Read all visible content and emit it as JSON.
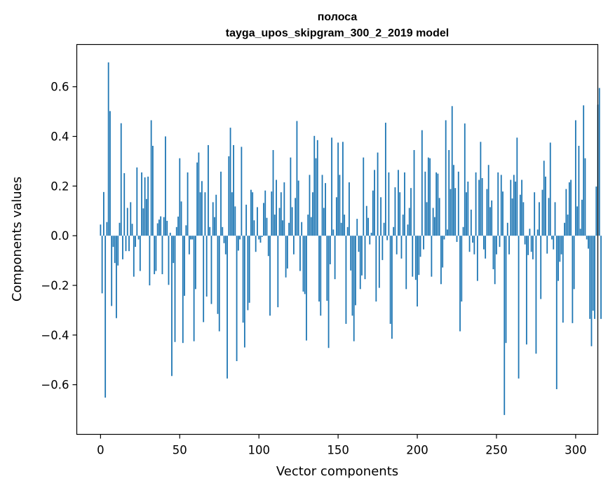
{
  "chart_data": {
    "type": "bar",
    "title": "полоса",
    "subtitle": "tayga_upos_skipgram_300_2_2019 model",
    "xlabel": "Vector components",
    "ylabel": "Components values",
    "xlim": [
      -15,
      314
    ],
    "ylim": [
      -0.8,
      0.77
    ],
    "xticks": [
      0,
      50,
      100,
      150,
      200,
      250,
      300
    ],
    "yticks": [
      -0.6,
      -0.4,
      -0.2,
      0.0,
      0.2,
      0.4,
      0.6
    ],
    "ytick_labels": [
      "−0.6",
      "−0.4",
      "−0.2",
      "0.0",
      "0.2",
      "0.4",
      "0.6"
    ],
    "bar_color": "#1f77b4",
    "series": [
      {
        "name": "values",
        "x_start": 0,
        "values": [
          0.045,
          -0.232,
          0.176,
          -0.652,
          0.055,
          0.698,
          0.502,
          -0.283,
          -0.045,
          -0.11,
          -0.332,
          -0.12,
          0.052,
          0.453,
          -0.095,
          0.252,
          -0.062,
          0.112,
          -0.062,
          0.135,
          0.048,
          -0.165,
          -0.045,
          0.275,
          -0.015,
          -0.142,
          0.255,
          0.11,
          0.235,
          0.148,
          0.238,
          -0.2,
          0.465,
          0.362,
          -0.155,
          -0.142,
          0.05,
          0.065,
          0.078,
          -0.155,
          0.075,
          0.4,
          0.06,
          -0.198,
          0.012,
          -0.565,
          -0.11,
          -0.428,
          0.035,
          0.077,
          0.312,
          0.138,
          -0.432,
          -0.242,
          0.042,
          0.255,
          -0.075,
          -0.015,
          -0.015,
          -0.425,
          -0.215,
          0.295,
          0.335,
          0.175,
          0.22,
          -0.348,
          0.175,
          -0.245,
          0.365,
          0.035,
          -0.275,
          0.135,
          0.075,
          0.165,
          -0.315,
          -0.385,
          0.258,
          0.035,
          -0.03,
          -0.075,
          -0.575,
          0.32,
          0.435,
          0.175,
          0.365,
          0.118,
          -0.505,
          -0.06,
          -0.015,
          0.358,
          -0.35,
          -0.45,
          0.125,
          -0.3,
          -0.27,
          0.185,
          0.175,
          0.062,
          -0.065,
          0.115,
          -0.015,
          -0.028,
          -0.005,
          0.132,
          0.182,
          0.072,
          -0.082,
          -0.322,
          0.178,
          0.345,
          0.085,
          0.225,
          -0.288,
          0.112,
          0.175,
          0.062,
          0.215,
          -0.168,
          -0.132,
          0.052,
          0.315,
          0.115,
          -0.075,
          0.152,
          0.462,
          0.222,
          -0.142,
          0.055,
          -0.225,
          -0.235,
          -0.422,
          0.085,
          0.245,
          0.075,
          0.175,
          0.402,
          0.312,
          0.385,
          -0.265,
          -0.322,
          0.245,
          0.112,
          0.212,
          -0.262,
          -0.452,
          -0.115,
          0.395,
          0.025,
          -0.175,
          0.155,
          0.375,
          0.245,
          0.052,
          0.378,
          0.085,
          -0.355,
          0.035,
          0.215,
          -0.14,
          -0.322,
          -0.425,
          -0.28,
          0.068,
          -0.065,
          -0.215,
          -0.16,
          0.315,
          -0.175,
          0.12,
          0.072,
          -0.035,
          0.012,
          0.182,
          0.265,
          -0.265,
          0.335,
          -0.21,
          0.155,
          -0.098,
          0.052,
          0.455,
          -0.018,
          0.255,
          -0.355,
          -0.415,
          0.035,
          0.195,
          -0.075,
          0.265,
          0.175,
          -0.092,
          0.085,
          0.255,
          -0.215,
          0.045,
          0.112,
          0.192,
          -0.165,
          0.345,
          -0.178,
          -0.285,
          -0.158,
          -0.085,
          0.425,
          -0.055,
          0.258,
          0.135,
          0.315,
          0.312,
          -0.165,
          0.112,
          0.075,
          0.255,
          0.25,
          0.152,
          -0.195,
          -0.128,
          -0.015,
          0.465,
          0.025,
          0.345,
          0.188,
          0.522,
          0.285,
          0.192,
          -0.025,
          0.258,
          -0.385,
          -0.265,
          0.035,
          0.452,
          0.175,
          0.218,
          -0.065,
          0.105,
          -0.028,
          -0.075,
          0.255,
          -0.182,
          0.225,
          0.378,
          0.232,
          -0.055,
          -0.092,
          0.188,
          0.285,
          0.115,
          0.142,
          -0.135,
          -0.195,
          -0.075,
          0.255,
          -0.045,
          0.245,
          0.178,
          -0.722,
          -0.432,
          0.052,
          -0.075,
          0.225,
          0.15,
          0.245,
          0.218,
          0.395,
          -0.575,
          0.165,
          0.225,
          0.135,
          -0.035,
          -0.438,
          -0.078,
          0.028,
          -0.065,
          -0.095,
          0.175,
          -0.475,
          0.025,
          0.135,
          -0.255,
          0.185,
          0.302,
          0.238,
          -0.072,
          0.152,
          0.375,
          -0.015,
          -0.055,
          0.135,
          -0.618,
          -0.182,
          -0.105,
          -0.075,
          -0.35,
          0.052,
          0.188,
          0.085,
          0.215,
          0.225,
          -0.352,
          -0.215,
          0.465,
          0.118,
          0.362,
          0.028,
          0.145,
          0.525,
          0.312,
          -0.015,
          -0.052,
          -0.335,
          -0.445,
          -0.302,
          -0.335,
          0.198,
          0.528,
          0.595,
          -0.335
        ]
      }
    ]
  }
}
